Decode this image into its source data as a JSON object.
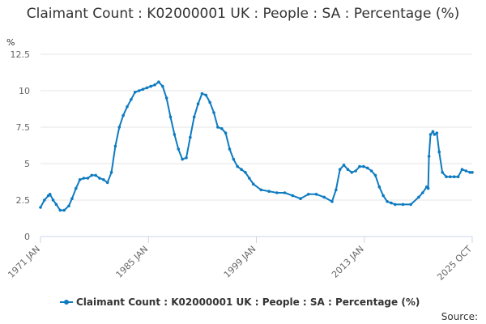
{
  "chart_data": {
    "type": "line",
    "title": "Claimant Count : K02000001 UK : People : SA : Percentage (%)",
    "ylabel": "%",
    "ylim": [
      0,
      12.5
    ],
    "y_ticks": [
      "0",
      "2.5",
      "5",
      "7.5",
      "10",
      "12.5"
    ],
    "x_tick_labels": [
      "1971 JAN",
      "1985 JAN",
      "1999 JAN",
      "2013 JAN",
      "2025 OCT"
    ],
    "x_range": [
      1971.0,
      2025.79
    ],
    "grid": "horizontal",
    "legend_position": "bottom",
    "source_label": "Source:",
    "colors": {
      "series": "#0e7bc0",
      "grid": "#e6e6e6",
      "axis": "#ccd6eb"
    },
    "series": [
      {
        "name": "Claimant Count : K02000001 UK : People : SA : Percentage (%)",
        "x": [
          1971.0,
          1971.5,
          1972.0,
          1972.2,
          1972.6,
          1973.0,
          1973.5,
          1974.0,
          1974.6,
          1975.0,
          1975.5,
          1976.0,
          1976.5,
          1977.0,
          1977.5,
          1978.0,
          1978.5,
          1979.0,
          1979.5,
          1980.0,
          1980.5,
          1981.0,
          1981.5,
          1982.0,
          1982.5,
          1983.0,
          1983.5,
          1984.0,
          1984.5,
          1985.0,
          1985.5,
          1986.0,
          1986.5,
          1987.0,
          1987.5,
          1988.0,
          1988.5,
          1989.0,
          1989.5,
          1990.0,
          1990.5,
          1991.0,
          1991.5,
          1992.0,
          1992.5,
          1993.0,
          1993.5,
          1994.0,
          1994.5,
          1995.0,
          1995.5,
          1996.0,
          1996.5,
          1997.0,
          1997.5,
          1998.0,
          1999.0,
          2000.0,
          2001.0,
          2002.0,
          2003.0,
          2004.0,
          2005.0,
          2006.0,
          2007.0,
          2008.0,
          2008.5,
          2009.0,
          2009.5,
          2010.0,
          2010.5,
          2011.0,
          2011.5,
          2012.0,
          2012.5,
          2013.0,
          2013.5,
          2014.0,
          2014.5,
          2015.0,
          2015.5,
          2016.0,
          2017.0,
          2018.0,
          2019.0,
          2019.5,
          2020.0,
          2020.2,
          2020.3,
          2020.5,
          2020.8,
          2021.0,
          2021.3,
          2021.6,
          2022.0,
          2022.5,
          2023.0,
          2023.5,
          2024.0,
          2024.5,
          2025.0,
          2025.5,
          2025.79
        ],
        "values": [
          2.0,
          2.5,
          2.8,
          2.9,
          2.5,
          2.2,
          1.8,
          1.8,
          2.1,
          2.6,
          3.3,
          3.9,
          4.0,
          4.0,
          4.2,
          4.2,
          4.0,
          3.9,
          3.7,
          4.4,
          6.2,
          7.5,
          8.3,
          8.9,
          9.4,
          9.9,
          10.0,
          10.1,
          10.2,
          10.3,
          10.4,
          10.6,
          10.3,
          9.5,
          8.2,
          7.0,
          6.0,
          5.3,
          5.4,
          6.8,
          8.2,
          9.1,
          9.8,
          9.7,
          9.2,
          8.5,
          7.5,
          7.4,
          7.1,
          6.0,
          5.3,
          4.8,
          4.6,
          4.4,
          4.0,
          3.6,
          3.2,
          3.1,
          3.0,
          3.0,
          2.8,
          2.6,
          2.9,
          2.9,
          2.7,
          2.4,
          3.2,
          4.6,
          4.9,
          4.6,
          4.4,
          4.5,
          4.8,
          4.8,
          4.7,
          4.5,
          4.2,
          3.4,
          2.8,
          2.4,
          2.3,
          2.2,
          2.2,
          2.2,
          2.7,
          3.0,
          3.4,
          3.3,
          5.5,
          7.0,
          7.2,
          7.0,
          7.1,
          5.8,
          4.4,
          4.1,
          4.1,
          4.1,
          4.1,
          4.6,
          4.5,
          4.4,
          4.4
        ]
      }
    ]
  }
}
